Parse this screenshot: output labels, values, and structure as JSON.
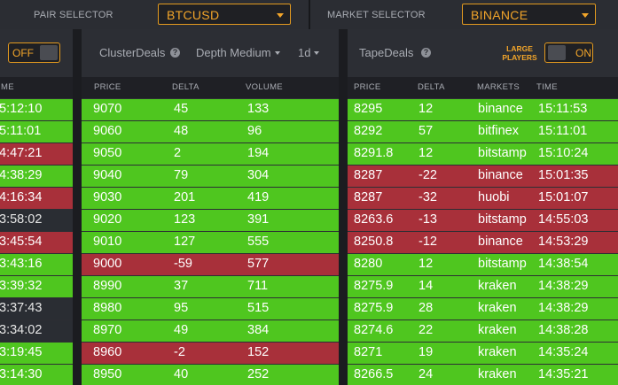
{
  "top": {
    "pair_selector_label": "PAIR SELECTOR",
    "pair_value": "BTCUSD",
    "market_selector_label": "MARKET SELECTOR",
    "market_value": "BINANCE"
  },
  "left_panel": {
    "toggle_label": "OFF",
    "time_header": "ME",
    "rows": [
      {
        "time": "5:12:10",
        "color": "g"
      },
      {
        "time": "5:11:01",
        "color": "g"
      },
      {
        "time": "4:47:21",
        "color": "r"
      },
      {
        "time": "4:38:29",
        "color": "g"
      },
      {
        "time": "4:16:34",
        "color": "r"
      },
      {
        "time": "3:58:02",
        "color": "d"
      },
      {
        "time": "3:45:54",
        "color": "r"
      },
      {
        "time": "3:43:16",
        "color": "g"
      },
      {
        "time": "3:39:32",
        "color": "g"
      },
      {
        "time": "3:37:43",
        "color": "d"
      },
      {
        "time": "3:34:02",
        "color": "d"
      },
      {
        "time": "3:19:45",
        "color": "g"
      },
      {
        "time": "3:14:30",
        "color": "g"
      }
    ]
  },
  "cluster": {
    "title": "ClusterDeals",
    "depth_label": "Depth Medium",
    "period_label": "1d",
    "headers": {
      "price": "PRICE",
      "delta": "DELTA",
      "volume": "VOLUME"
    },
    "rows": [
      {
        "price": "9070",
        "delta": "45",
        "volume": "133",
        "color": "g"
      },
      {
        "price": "9060",
        "delta": "48",
        "volume": "96",
        "color": "g"
      },
      {
        "price": "9050",
        "delta": "2",
        "volume": "194",
        "color": "g"
      },
      {
        "price": "9040",
        "delta": "79",
        "volume": "304",
        "color": "g"
      },
      {
        "price": "9030",
        "delta": "201",
        "volume": "419",
        "color": "g"
      },
      {
        "price": "9020",
        "delta": "123",
        "volume": "391",
        "color": "g"
      },
      {
        "price": "9010",
        "delta": "127",
        "volume": "555",
        "color": "g"
      },
      {
        "price": "9000",
        "delta": "-59",
        "volume": "577",
        "color": "r"
      },
      {
        "price": "8990",
        "delta": "37",
        "volume": "711",
        "color": "g"
      },
      {
        "price": "8980",
        "delta": "95",
        "volume": "515",
        "color": "g"
      },
      {
        "price": "8970",
        "delta": "49",
        "volume": "384",
        "color": "g"
      },
      {
        "price": "8960",
        "delta": "-2",
        "volume": "152",
        "color": "r"
      },
      {
        "price": "8950",
        "delta": "40",
        "volume": "252",
        "color": "g"
      }
    ]
  },
  "tape": {
    "title": "TapeDeals",
    "large_players_label": "LARGE PLAYERS",
    "toggle_label": "ON",
    "headers": {
      "price": "PRICE",
      "delta": "DELTA",
      "markets": "MARKETS",
      "time": "TIME"
    },
    "rows": [
      {
        "price": "8295",
        "delta": "12",
        "market": "binance",
        "time": "15:11:53",
        "color": "g"
      },
      {
        "price": "8292",
        "delta": "57",
        "market": "bitfinex",
        "time": "15:11:01",
        "color": "g"
      },
      {
        "price": "8291.8",
        "delta": "12",
        "market": "bitstamp",
        "time": "15:10:24",
        "color": "g"
      },
      {
        "price": "8287",
        "delta": "-22",
        "market": "binance",
        "time": "15:01:35",
        "color": "r"
      },
      {
        "price": "8287",
        "delta": "-32",
        "market": "huobi",
        "time": "15:01:07",
        "color": "r"
      },
      {
        "price": "8263.6",
        "delta": "-13",
        "market": "bitstamp",
        "time": "14:55:03",
        "color": "r"
      },
      {
        "price": "8250.8",
        "delta": "-12",
        "market": "binance",
        "time": "14:53:29",
        "color": "r"
      },
      {
        "price": "8280",
        "delta": "12",
        "market": "bitstamp",
        "time": "14:38:54",
        "color": "g"
      },
      {
        "price": "8275.9",
        "delta": "14",
        "market": "kraken",
        "time": "14:38:29",
        "color": "g"
      },
      {
        "price": "8275.9",
        "delta": "28",
        "market": "kraken",
        "time": "14:38:29",
        "color": "g"
      },
      {
        "price": "8274.6",
        "delta": "22",
        "market": "kraken",
        "time": "14:38:28",
        "color": "g"
      },
      {
        "price": "8271",
        "delta": "19",
        "market": "kraken",
        "time": "14:35:24",
        "color": "g"
      },
      {
        "price": "8266.5",
        "delta": "24",
        "market": "kraken",
        "time": "14:35:21",
        "color": "g"
      }
    ]
  }
}
